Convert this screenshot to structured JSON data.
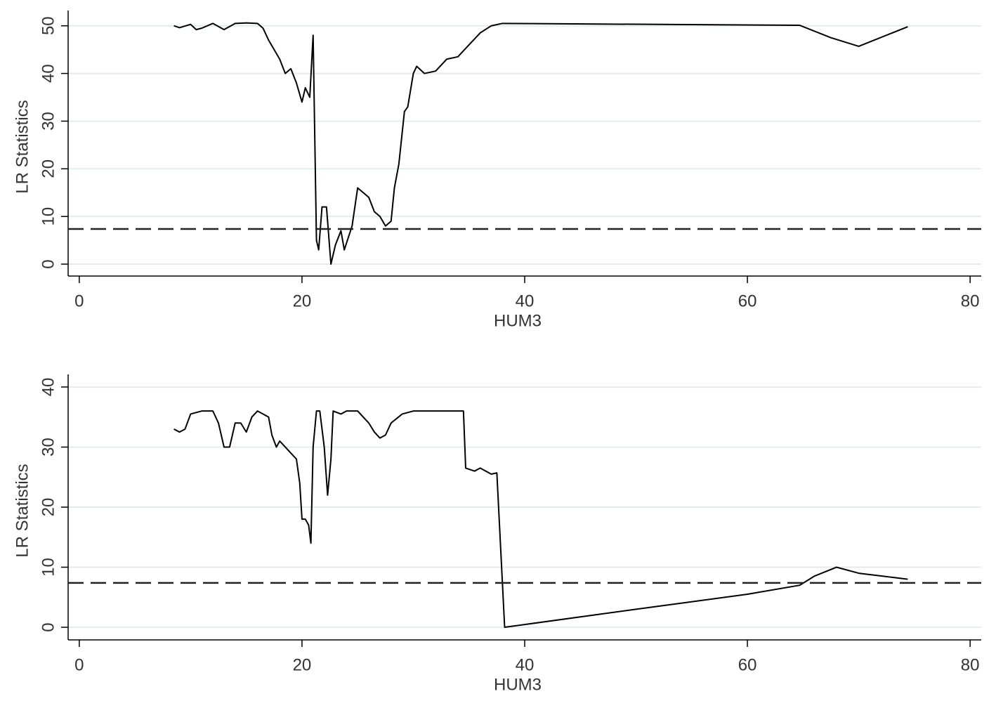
{
  "chart_data": [
    {
      "type": "line",
      "xlabel": "HUM3",
      "ylabel": "LR Statistics",
      "xlim": [
        -1,
        81
      ],
      "xticks": [
        0,
        20,
        40,
        60,
        80
      ],
      "ylim": [
        -2.5,
        53.2
      ],
      "yticks": [
        0,
        10,
        20,
        30,
        40,
        50
      ],
      "grid": true,
      "color": "#000000",
      "reference_line": 7.38,
      "x": [
        8.5,
        9,
        10,
        10.5,
        11,
        12,
        13,
        14,
        15,
        16,
        16.5,
        17,
        17.5,
        18,
        18.5,
        19,
        19.5,
        20,
        20.3,
        20.7,
        21,
        21.3,
        21.5,
        21.8,
        22.2,
        22.6,
        23,
        23.5,
        23.8,
        24.5,
        25,
        25.5,
        26,
        26.5,
        27,
        27.5,
        28,
        28.3,
        28.7,
        29.2,
        29.5,
        30,
        30.3,
        31,
        32,
        33,
        34,
        35,
        36,
        37,
        38,
        64.7,
        67.5,
        70,
        74.4
      ],
      "values": [
        50,
        49.6,
        50.3,
        49.2,
        49.5,
        50.5,
        49.2,
        50.5,
        50.6,
        50.5,
        49.5,
        47,
        45,
        43,
        40,
        41,
        38,
        34,
        37,
        35,
        48,
        5,
        3,
        12,
        12,
        0,
        4,
        7,
        3,
        8,
        16,
        15,
        14,
        11,
        10,
        8,
        9,
        16,
        21,
        32,
        33,
        40,
        41.5,
        40,
        40.5,
        43,
        43.5,
        46,
        48.5,
        50,
        50.5,
        50.1,
        47.5,
        45.7,
        49.8
      ]
    },
    {
      "type": "line",
      "xlabel": "HUM3",
      "ylabel": "LR Statistics",
      "xlim": [
        -1,
        81
      ],
      "xticks": [
        0,
        20,
        40,
        60,
        80
      ],
      "ylim": [
        -2.1,
        42.1
      ],
      "yticks": [
        0,
        10,
        20,
        30,
        40
      ],
      "grid": true,
      "color": "#000000",
      "reference_line": 7.38,
      "x": [
        8.5,
        9,
        9.5,
        10,
        11,
        12,
        12.5,
        13,
        13.5,
        14,
        14.5,
        15,
        15.5,
        16,
        17,
        17.3,
        17.7,
        18,
        18.5,
        19,
        19.5,
        19.8,
        20,
        20.3,
        20.6,
        20.8,
        21,
        21.3,
        21.6,
        22,
        22.3,
        22.6,
        22.8,
        23.5,
        24,
        25,
        26,
        26.5,
        27,
        27.5,
        28,
        29,
        30,
        34.5,
        34.7,
        35.5,
        36,
        37,
        37.5,
        38.2,
        50,
        60,
        64.7,
        66,
        68,
        70,
        74.4
      ],
      "values": [
        33,
        32.5,
        33,
        35.5,
        36,
        36,
        34,
        30,
        30,
        34,
        34,
        32.5,
        35,
        36,
        35,
        32,
        30,
        31,
        30,
        29,
        28,
        24,
        18,
        18,
        17,
        14,
        30,
        36,
        36,
        30,
        22,
        28,
        36,
        35.5,
        36,
        36,
        34,
        32.5,
        31.5,
        32,
        34,
        35.5,
        36,
        36,
        26.5,
        26,
        26.5,
        25.5,
        25.7,
        0,
        3,
        5.5,
        7,
        8.5,
        10,
        9,
        8
      ]
    }
  ]
}
